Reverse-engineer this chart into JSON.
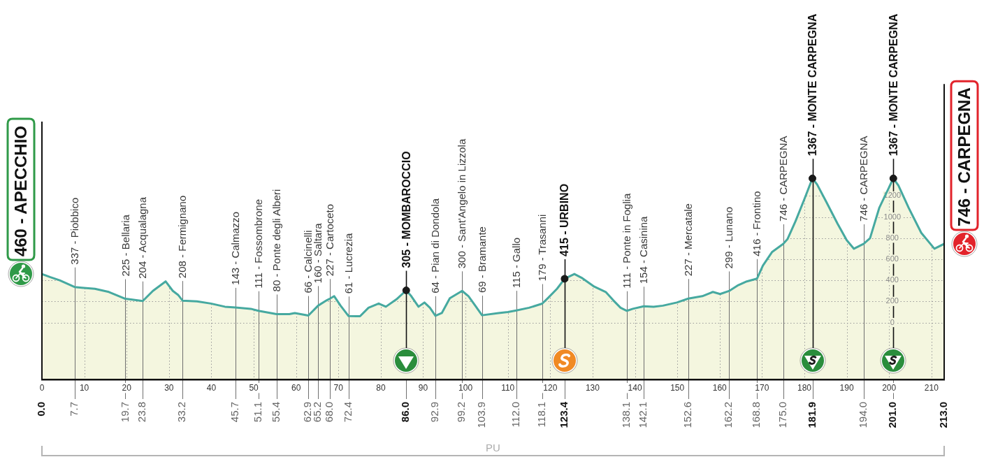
{
  "chart_data": {
    "type": "area",
    "series": [
      {
        "type": "area",
        "color": "#46a9a0",
        "x": [
          0,
          2.0,
          4.2,
          7.7,
          9.4,
          12.5,
          15.8,
          19.7,
          20.7,
          23.8,
          26.2,
          29.2,
          30.9,
          32.2,
          33.2,
          36.6,
          39.9,
          43.2,
          45.7,
          49.3,
          51.1,
          55.4,
          58.4,
          59.7,
          62.9,
          65.2,
          67.2,
          68.0,
          69.0,
          70.5,
          72.4,
          75.1,
          77.1,
          79.5,
          81.2,
          83.7,
          86.0,
          87.2,
          88.9,
          90.3,
          91.6,
          92.9,
          94.4,
          96.3,
          99.2,
          100.7,
          102.3,
          103.9,
          107.8,
          110.0,
          112.0,
          115.0,
          118.1,
          119.4,
          121.6,
          123.4,
          125.7,
          127.6,
          130.4,
          133.1,
          134.9,
          136.6,
          138.1,
          139.5,
          142.1,
          144.4,
          146.6,
          149.9,
          152.6,
          155.9,
          158.4,
          160.1,
          162.2,
          164.2,
          166.4,
          168.8,
          170.2,
          172.4,
          175.0,
          176.0,
          177.9,
          179.9,
          181.9,
          183.0,
          185.1,
          187.8,
          190.0,
          191.7,
          194.0,
          195.5,
          197.7,
          201.0,
          202.2,
          204.6,
          207.6,
          210.7,
          213.0
        ],
        "values": [
          460,
          430,
          400,
          337,
          330,
          320,
          290,
          225,
          220,
          204,
          300,
          390,
          300,
          260,
          208,
          200,
          180,
          150,
          143,
          130,
          111,
          80,
          80,
          90,
          66,
          160,
          210,
          227,
          250,
          160,
          61,
          60,
          140,
          180,
          150,
          220,
          305,
          250,
          150,
          190,
          140,
          64,
          90,
          230,
          300,
          250,
          160,
          69,
          90,
          100,
          115,
          140,
          179,
          230,
          320,
          415,
          460,
          420,
          340,
          290,
          210,
          140,
          111,
          130,
          154,
          150,
          160,
          190,
          227,
          250,
          290,
          270,
          299,
          350,
          390,
          416,
          540,
          670,
          746,
          790,
          960,
          1160,
          1367,
          1310,
          1150,
          940,
          780,
          700,
          746,
          800,
          1090,
          1367,
          1300,
          1090,
          850,
          700,
          746
        ]
      },
      {
        "type": "scatter",
        "color": "#1a1a1a",
        "marker": "circle",
        "x": [
          86.0,
          123.4,
          181.9,
          201.0
        ],
        "values": [
          305,
          415,
          1367,
          1367
        ]
      }
    ],
    "xlim": [
      0,
      213
    ],
    "xticks": [
      0,
      10,
      20,
      30,
      40,
      50,
      60,
      70,
      80,
      90,
      100,
      110,
      120,
      130,
      140,
      150,
      160,
      170,
      180,
      190,
      200,
      210
    ],
    "x2lim": [
      0,
      213
    ],
    "x2ticks": [
      {
        "value": 0,
        "label": "0.0"
      },
      7.7,
      19.7,
      23.8,
      33.2,
      45.7,
      51.1,
      55.4,
      62.9,
      65.2,
      {
        "value": 68,
        "label": "68.0"
      },
      72.4,
      {
        "value": 86,
        "label": "86.0"
      },
      92.9,
      99.2,
      103.9,
      {
        "value": 112,
        "label": "112.0"
      },
      118.1,
      123.4,
      138.1,
      142.1,
      152.6,
      162.2,
      168.8,
      {
        "value": 175,
        "label": "175.0"
      },
      181.9,
      {
        "value": 194,
        "label": "194.0"
      },
      {
        "value": 201,
        "label": "201.0"
      },
      {
        "value": 213,
        "label": "213.0"
      }
    ],
    "ylim": [
      -540,
      2860
    ],
    "yticks": [
      0,
      200,
      400,
      600,
      800,
      1000,
      1200
    ],
    "bands": [
      {
        "axis": "y",
        "from": -540,
        "to": 0,
        "color": "#f4f6df"
      }
    ],
    "annotations": [
      {
        "text": "460 - APECCHIO",
        "x": 0,
        "y": 460
      },
      {
        "text": "337 - Piobbico",
        "x": 7.7,
        "y": 337
      },
      {
        "text": "225 - Bellaria",
        "x": 19.7,
        "y": 225
      },
      {
        "text": "204 - Acqualagna",
        "x": 23.8,
        "y": 204
      },
      {
        "text": "208 - Fermignano",
        "x": 33.2,
        "y": 208
      },
      {
        "text": "143 - Calmazzo",
        "x": 45.7,
        "y": 143
      },
      {
        "text": "111 - Fossombrone",
        "x": 51.1,
        "y": 111
      },
      {
        "text": "80 - Ponte degli Alberi",
        "x": 55.4,
        "y": 80
      },
      {
        "text": "66 - Calcinelli",
        "x": 62.9,
        "y": 66
      },
      {
        "text": "160 - Saltara",
        "x": 65.2,
        "y": 160
      },
      {
        "text": "227 - Cartoceto",
        "x": 68.0,
        "y": 227
      },
      {
        "text": "61 - Lucrezia",
        "x": 72.4,
        "y": 61
      },
      {
        "text": "305 - MOMBAROCCIO",
        "x": 86.0,
        "y": 305
      },
      {
        "text": "64 - Pian di Dondola",
        "x": 92.9,
        "y": 64
      },
      {
        "text": "300 - Sant'Angelo in Lizzola",
        "x": 99.2,
        "y": 300
      },
      {
        "text": "69 - Bramante",
        "x": 103.9,
        "y": 69
      },
      {
        "text": "115 - Gallo",
        "x": 112.0,
        "y": 115
      },
      {
        "text": "179 - Trasanni",
        "x": 118.1,
        "y": 179
      },
      {
        "text": "415 - URBINO",
        "x": 123.4,
        "y": 415
      },
      {
        "text": "111 - Ponte in Foglia",
        "x": 138.1,
        "y": 111
      },
      {
        "text": "154 - Casinina",
        "x": 142.1,
        "y": 154
      },
      {
        "text": "227 - Mercatale",
        "x": 152.6,
        "y": 227
      },
      {
        "text": "299 - Lunano",
        "x": 162.2,
        "y": 299
      },
      {
        "text": "416 - Frontino",
        "x": 168.8,
        "y": 416
      },
      {
        "text": "746 - CARPEGNA",
        "x": 175.0,
        "y": 746
      },
      {
        "text": "1367 - MONTE CARPEGNA",
        "x": 181.9,
        "y": 1367
      },
      {
        "text": "746 - CARPEGNA",
        "x": 194.0,
        "y": 746
      },
      {
        "text": "1367 - MONTE CARPEGNA",
        "x": 201.0,
        "y": 1367
      },
      {
        "text": "746 - CARPEGNA",
        "x": 213.0,
        "y": 746
      },
      "PU"
    ],
    "grid": true,
    "legend": false
  }
}
